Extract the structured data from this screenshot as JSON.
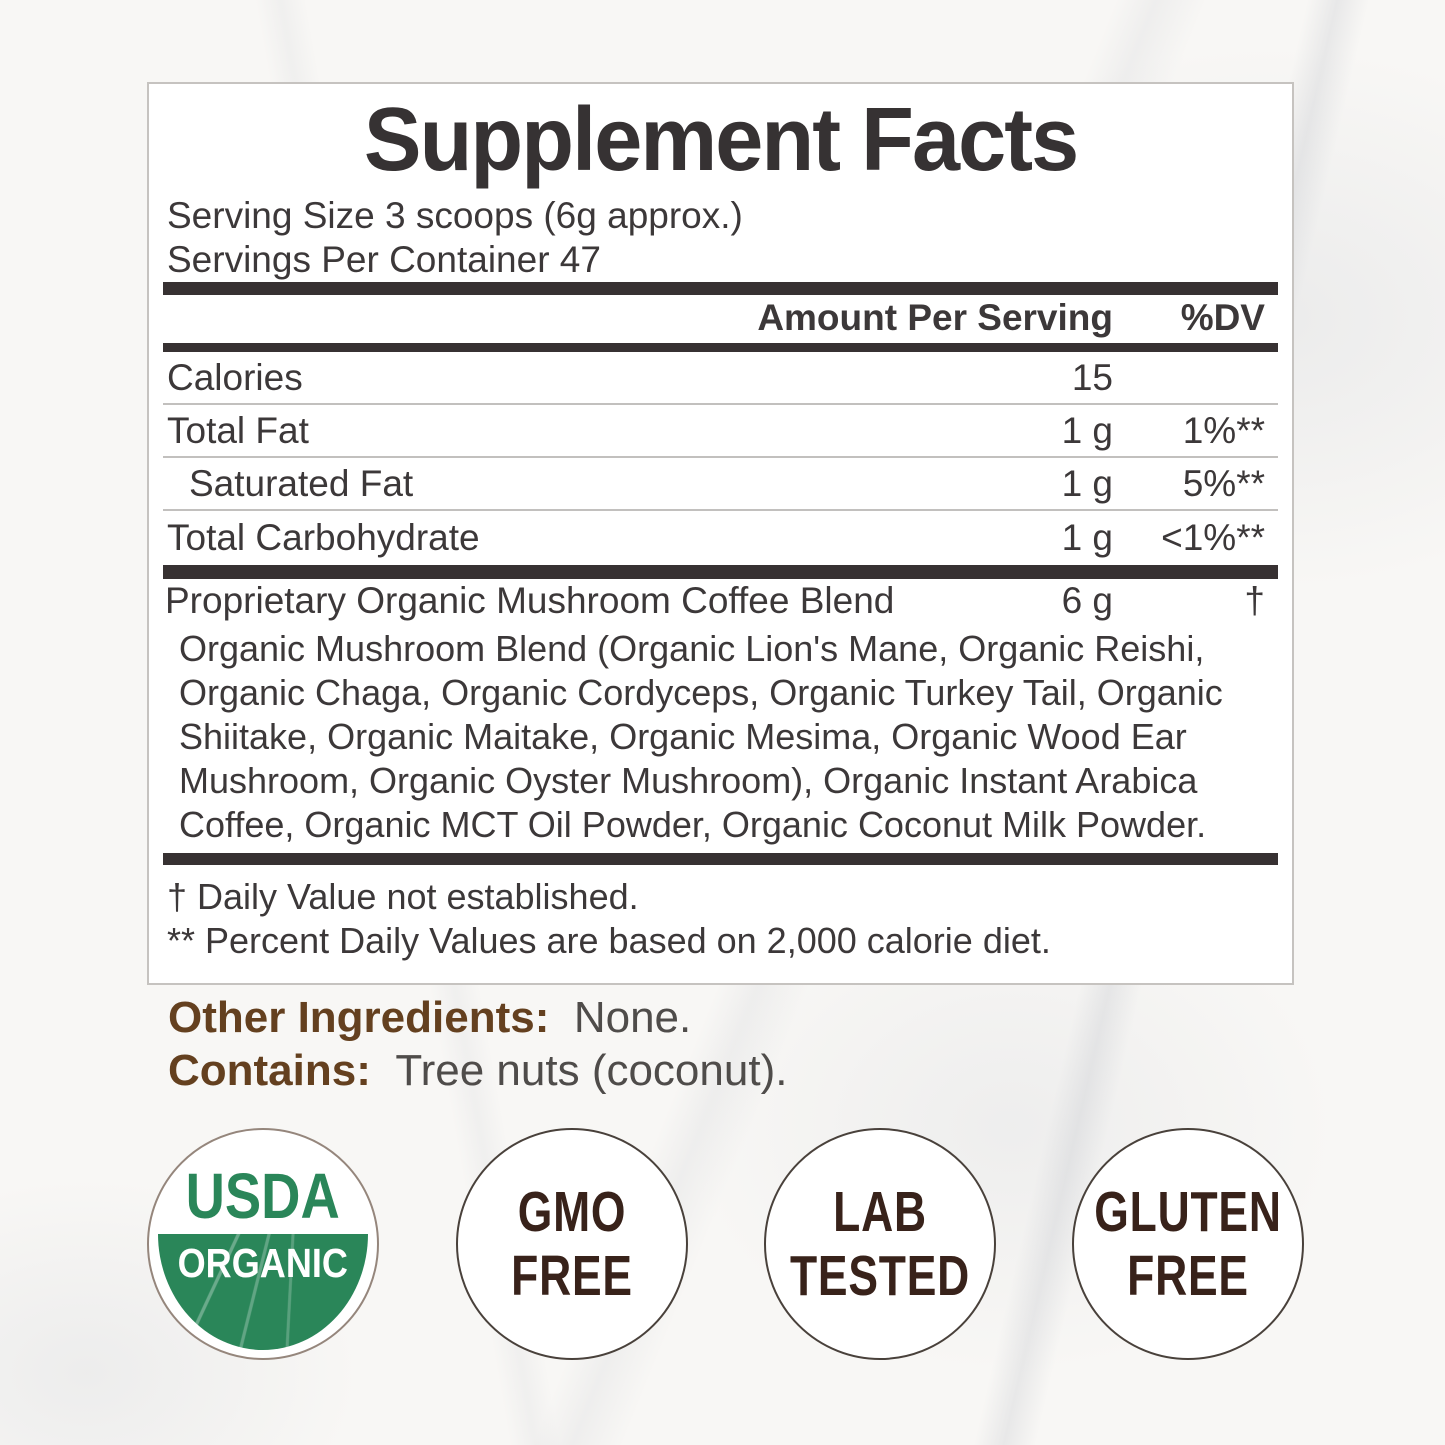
{
  "colors": {
    "usda_green": "#2a8659",
    "label_brown": "#64401f",
    "badge_text_brown": "#38221a",
    "panel_text": "#3c3839"
  },
  "supplement_facts": {
    "title": "Supplement Facts",
    "serving_size": "Serving Size 3 scoops (6g approx.)",
    "servings_per_container": "Servings Per Container 47",
    "columns": {
      "amount": "Amount Per Serving",
      "dv": "%DV"
    },
    "rows": [
      {
        "label": "Calories",
        "amount": "15",
        "dv": ""
      },
      {
        "label": "Total Fat",
        "amount": "1 g",
        "dv": "1%**"
      },
      {
        "label": "Saturated Fat",
        "amount": "1 g",
        "dv": "5%**"
      },
      {
        "label": "Total Carbohydrate",
        "amount": "1 g",
        "dv": "<1%**"
      }
    ],
    "proprietary_blend": {
      "label": "Proprietary Organic Mushroom Coffee Blend",
      "amount": "6 g",
      "dv": "†",
      "ingredients": "Organic Mushroom Blend (Organic Lion's Mane, Organic Reishi, Organic Chaga, Organic Cordyceps, Organic Turkey Tail, Organic Shiitake, Organic Maitake, Organic Mesima, Organic Wood Ear Mushroom, Organic Oyster Mushroom), Organic Instant Arabica Coffee, Organic MCT Oil Powder, Organic Coconut Milk Powder."
    },
    "footnotes": [
      "† Daily Value not established.",
      "** Percent Daily Values are based on 2,000 calorie diet."
    ]
  },
  "other_ingredients": {
    "label": "Other Ingredients:",
    "value": "None."
  },
  "contains": {
    "label": "Contains:",
    "value": "Tree nuts (coconut)."
  },
  "badges": [
    {
      "line1": "USDA",
      "line2": "ORGANIC"
    },
    {
      "line1": "GMO",
      "line2": "FREE"
    },
    {
      "line1": "LAB",
      "line2": "TESTED"
    },
    {
      "line1": "GLUTEN",
      "line2": "FREE"
    }
  ]
}
